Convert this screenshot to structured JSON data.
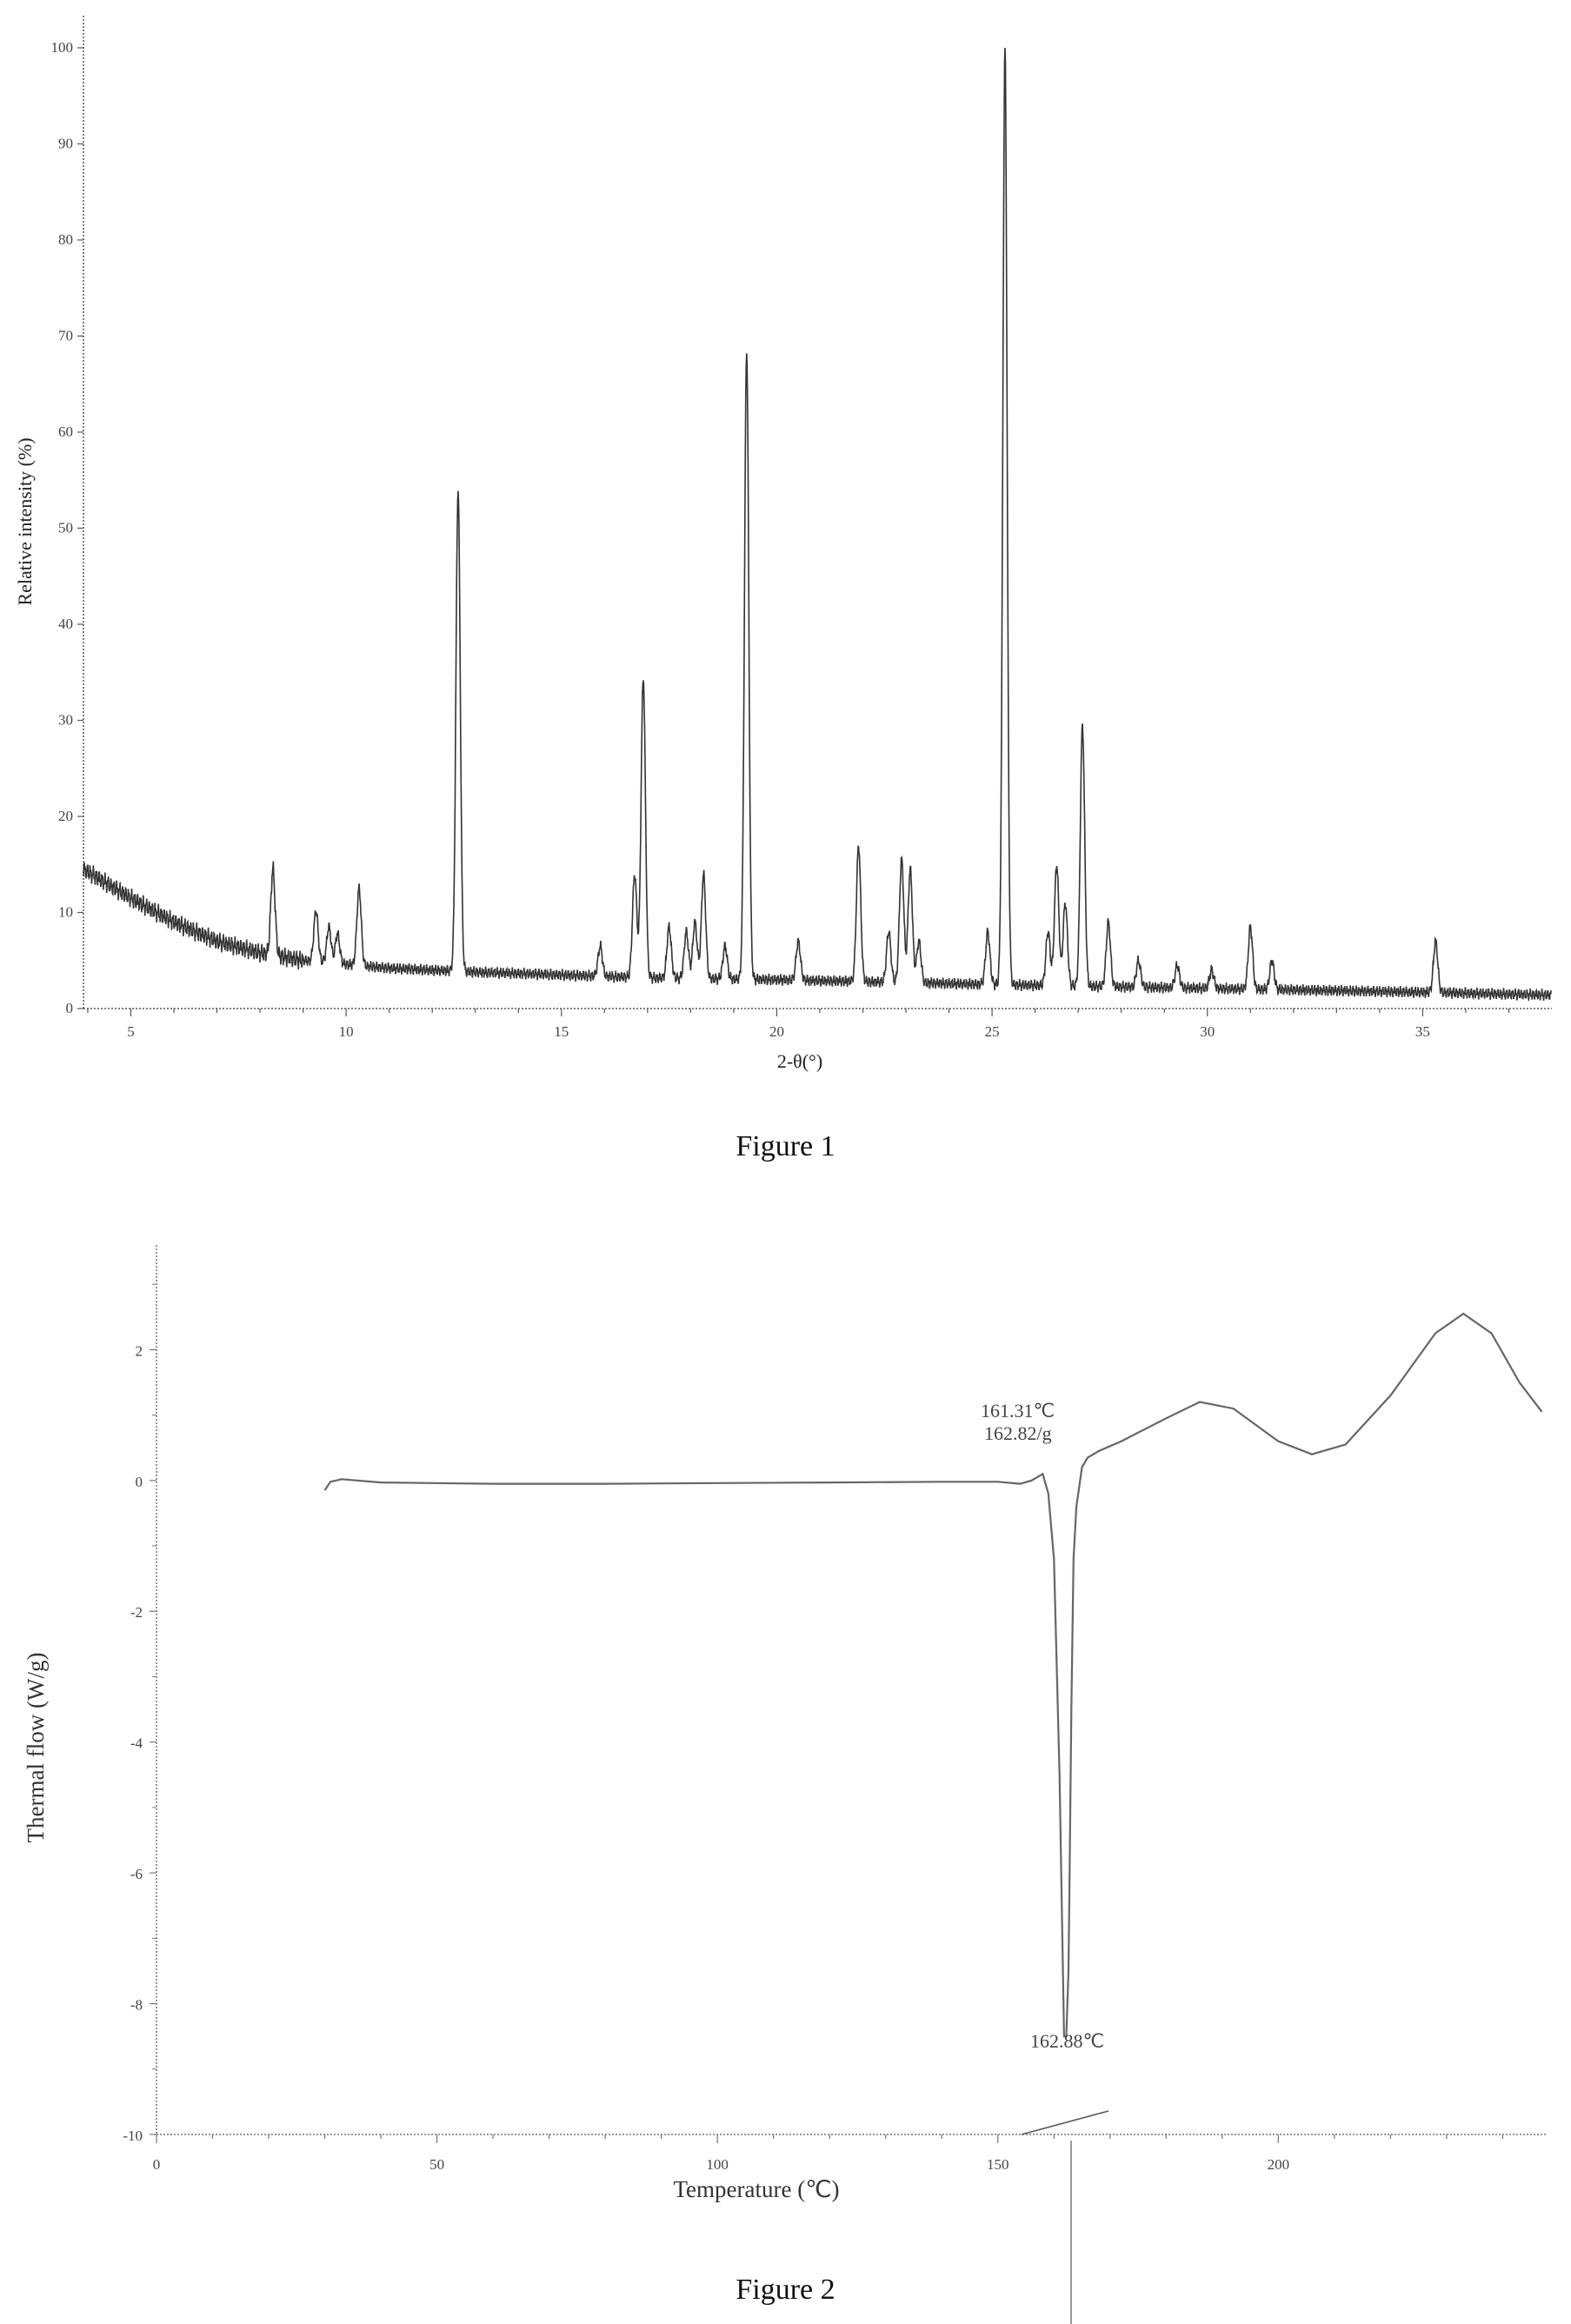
{
  "chart_data": [
    {
      "type": "line",
      "ylabel": "Relative intensity (%)",
      "xlabel": "2-θ(°)",
      "xlim": [
        3.9,
        38.0
      ],
      "ylim": [
        0,
        100
      ],
      "x_ticks": [
        5,
        10,
        15,
        20,
        25,
        30,
        35
      ],
      "y_ticks": [
        0,
        10,
        20,
        30,
        40,
        50,
        60,
        70,
        80,
        90,
        100
      ],
      "grid": false,
      "baseline": [
        [
          3.9,
          14.5
        ],
        [
          5.0,
          11.5
        ],
        [
          6.0,
          9
        ],
        [
          7.0,
          7
        ],
        [
          8.0,
          5.8
        ],
        [
          9.0,
          5.0
        ],
        [
          10.0,
          4.6
        ],
        [
          11.0,
          4.2
        ],
        [
          13.0,
          3.8
        ],
        [
          15.0,
          3.5
        ],
        [
          17.0,
          3.2
        ],
        [
          20.0,
          3.0
        ],
        [
          25.0,
          2.5
        ],
        [
          30.0,
          2.1
        ],
        [
          35.0,
          1.7
        ],
        [
          38.0,
          1.4
        ]
      ],
      "peaks": [
        {
          "x": 8.3,
          "y": 14.5
        },
        {
          "x": 9.3,
          "y": 10.2
        },
        {
          "x": 9.6,
          "y": 8.5
        },
        {
          "x": 9.8,
          "y": 7.8
        },
        {
          "x": 10.3,
          "y": 12.5
        },
        {
          "x": 12.6,
          "y": 54
        },
        {
          "x": 15.9,
          "y": 6.5
        },
        {
          "x": 16.7,
          "y": 14
        },
        {
          "x": 16.9,
          "y": 34.5
        },
        {
          "x": 17.5,
          "y": 8.5
        },
        {
          "x": 17.9,
          "y": 8
        },
        {
          "x": 18.1,
          "y": 9
        },
        {
          "x": 18.3,
          "y": 14
        },
        {
          "x": 18.8,
          "y": 6.5
        },
        {
          "x": 19.3,
          "y": 68.5
        },
        {
          "x": 20.5,
          "y": 7
        },
        {
          "x": 21.9,
          "y": 17
        },
        {
          "x": 22.6,
          "y": 8
        },
        {
          "x": 22.9,
          "y": 15.5
        },
        {
          "x": 23.1,
          "y": 14.5
        },
        {
          "x": 23.3,
          "y": 7
        },
        {
          "x": 24.9,
          "y": 8
        },
        {
          "x": 25.3,
          "y": 100
        },
        {
          "x": 26.3,
          "y": 8
        },
        {
          "x": 26.5,
          "y": 15
        },
        {
          "x": 26.7,
          "y": 11
        },
        {
          "x": 27.1,
          "y": 29.5
        },
        {
          "x": 27.7,
          "y": 9
        },
        {
          "x": 28.4,
          "y": 5
        },
        {
          "x": 29.3,
          "y": 4.5
        },
        {
          "x": 30.1,
          "y": 4
        },
        {
          "x": 31.0,
          "y": 8.5
        },
        {
          "x": 31.5,
          "y": 5
        },
        {
          "x": 35.3,
          "y": 7
        }
      ]
    },
    {
      "type": "line",
      "ylabel": "Thermal flow (W/g)",
      "xlabel": "Temperature (℃)",
      "xlim": [
        0,
        248
      ],
      "ylim": [
        -10,
        3.6
      ],
      "x_ticks": [
        0,
        50,
        100,
        150,
        200
      ],
      "y_ticks": [
        2,
        0,
        -2,
        -4,
        -6,
        -8,
        -10
      ],
      "grid": false,
      "series": [
        {
          "x": [
            30,
            31,
            33,
            40,
            60,
            80,
            100,
            120,
            140,
            150,
            154,
            156,
            158,
            159,
            160,
            161,
            161.8,
            162.2,
            162.6,
            162.8,
            163.1,
            163.5,
            164,
            165,
            166,
            168,
            172,
            180,
            186,
            192,
            200,
            206,
            212,
            220,
            228,
            233,
            238,
            243,
            247
          ],
          "y": [
            -0.15,
            -0.02,
            0.02,
            -0.03,
            -0.05,
            -0.05,
            -0.04,
            -0.03,
            -0.02,
            -0.02,
            -0.05,
            0.0,
            0.1,
            -0.2,
            -1.2,
            -4.5,
            -8.5,
            -8.5,
            -7.5,
            -6.0,
            -3.5,
            -1.2,
            -0.4,
            0.2,
            0.35,
            0.45,
            0.6,
            0.95,
            1.2,
            1.1,
            0.6,
            0.4,
            0.55,
            1.3,
            2.25,
            2.55,
            2.25,
            1.5,
            1.05
          ]
        }
      ],
      "annotations": [
        "161.31℃",
        "162.82/g",
        "162.88℃"
      ]
    }
  ],
  "captions": {
    "figure1": "Figure 1",
    "figure2": "Figure 2"
  }
}
